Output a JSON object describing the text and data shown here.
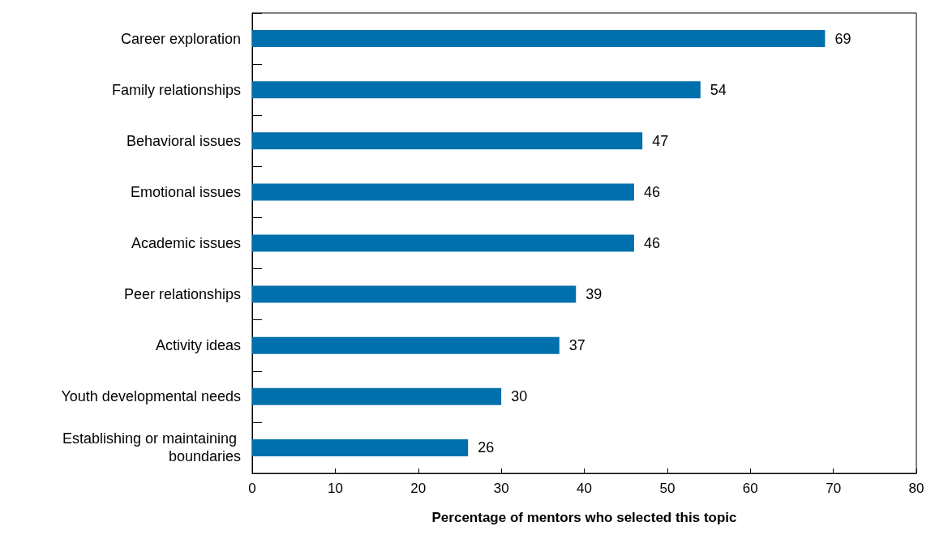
{
  "chart_data": {
    "type": "bar",
    "orientation": "horizontal",
    "categories": [
      "Career exploration",
      "Family relationships",
      "Behavioral issues",
      "Emotional issues",
      "Academic issues",
      "Peer relationships",
      "Activity ideas",
      "Youth developmental needs",
      "Establishing or maintaining boundaries"
    ],
    "values": [
      69,
      54,
      47,
      46,
      46,
      39,
      37,
      30,
      26
    ],
    "color": "#0070ad",
    "xlabel": "Percentage of mentors who selected this topic",
    "xlim": [
      0,
      80
    ],
    "xticks": [
      0,
      10,
      20,
      30,
      40,
      50,
      60,
      70,
      80
    ],
    "data_labels": true,
    "grid": false
  }
}
